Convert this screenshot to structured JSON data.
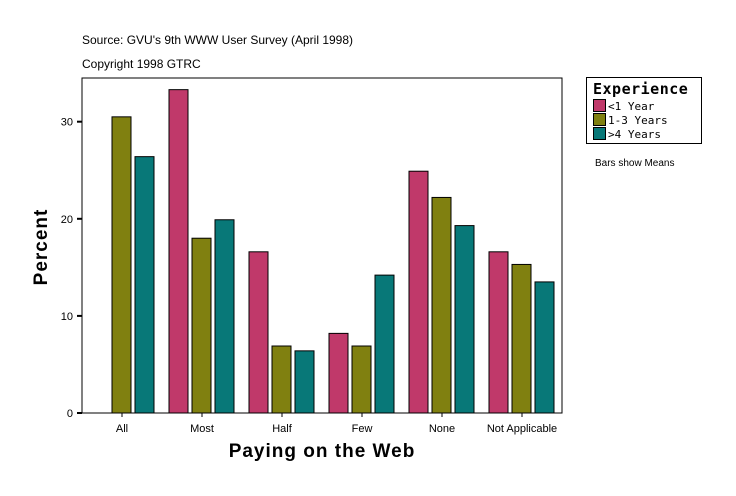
{
  "header": {
    "source": "Source: GVU's 9th WWW User Survey (April 1998)",
    "copyright": "Copyright 1998 GTRC"
  },
  "note": "Bars show Means",
  "chart_data": {
    "type": "bar",
    "xlabel": "Paying on the Web",
    "ylabel": "Percent",
    "categories": [
      "All",
      "Most",
      "Half",
      "Few",
      "None",
      "Not Applicable"
    ],
    "ylim": [
      0,
      34.5
    ],
    "yticks": [
      0,
      10,
      20,
      30
    ],
    "grid": false,
    "legend_title": "Experience",
    "legend_placement": "right",
    "series": [
      {
        "name": "<1 Year",
        "color": "#c0396a",
        "values": [
          null,
          33.3,
          16.6,
          8.2,
          24.9,
          16.6
        ]
      },
      {
        "name": "1-3 Years",
        "color": "#808010",
        "values": [
          30.5,
          18.0,
          6.9,
          6.9,
          22.2,
          15.3
        ]
      },
      {
        "name": ">4 Years",
        "color": "#087878",
        "values": [
          26.4,
          19.9,
          6.4,
          14.2,
          19.3,
          13.5
        ]
      }
    ]
  }
}
